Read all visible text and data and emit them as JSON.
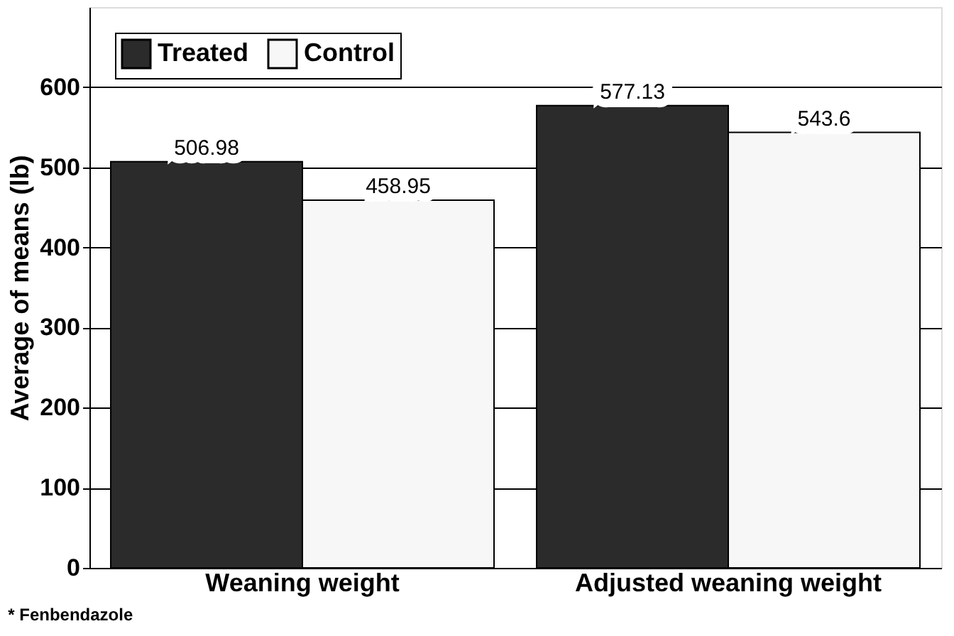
{
  "chart_data": {
    "type": "bar",
    "ylabel": "Average of means (lb)",
    "categories": [
      "Weaning weight",
      "Adjusted weaning weight"
    ],
    "series": [
      {
        "name": "Treated",
        "color": "#2b2b2b",
        "values": [
          506.98,
          577.13
        ]
      },
      {
        "name": "Control",
        "color": "#f7f7f7",
        "values": [
          458.95,
          543.6
        ]
      }
    ],
    "ylim": [
      0,
      700
    ],
    "yticks": [
      0,
      100,
      200,
      300,
      400,
      500,
      600
    ],
    "grid": "y",
    "legend": "top left",
    "data_labels": true,
    "annotations": [
      "* Fenbendazole"
    ]
  }
}
